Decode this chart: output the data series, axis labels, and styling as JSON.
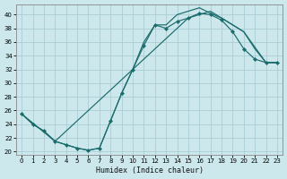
{
  "xlabel": "Humidex (Indice chaleur)",
  "bg_color": "#cce8ec",
  "grid_color": "#aacdd4",
  "line_color": "#1a6b6b",
  "xlim": [
    -0.5,
    23.5
  ],
  "ylim": [
    19.5,
    41.5
  ],
  "xticks": [
    0,
    1,
    2,
    3,
    4,
    5,
    6,
    7,
    8,
    9,
    10,
    11,
    12,
    13,
    14,
    15,
    16,
    17,
    18,
    19,
    20,
    21,
    22,
    23
  ],
  "yticks": [
    20,
    22,
    24,
    26,
    28,
    30,
    32,
    34,
    36,
    38,
    40
  ],
  "curve1_x": [
    0,
    1,
    2,
    3,
    4,
    5,
    6,
    7,
    8,
    9,
    10,
    11,
    12,
    13,
    14,
    15,
    16,
    17,
    18,
    19,
    20,
    21,
    22,
    23
  ],
  "curve1_y": [
    25.5,
    24.0,
    23.0,
    21.5,
    21.0,
    20.5,
    20.2,
    20.5,
    24.5,
    28.5,
    32.0,
    35.5,
    38.5,
    38.0,
    39.0,
    39.5,
    40.2,
    40.0,
    39.2,
    37.5,
    35.0,
    33.5,
    33.0,
    33.0
  ],
  "curve2_x": [
    0,
    1,
    2,
    3,
    4,
    5,
    6,
    7,
    8,
    9,
    10,
    11,
    12,
    13,
    14,
    15,
    16,
    17,
    18,
    19,
    20,
    21,
    22,
    23
  ],
  "curve2_y": [
    25.5,
    24.0,
    23.0,
    21.5,
    21.0,
    20.5,
    20.2,
    20.5,
    24.5,
    28.5,
    32.0,
    36.0,
    38.5,
    38.5,
    40.0,
    40.5,
    41.0,
    40.2,
    39.5,
    38.5,
    37.5,
    35.0,
    33.0,
    33.0
  ],
  "curve3_x": [
    0,
    3,
    10,
    15,
    17,
    19,
    20,
    22,
    23
  ],
  "curve3_y": [
    25.5,
    21.5,
    32.0,
    39.5,
    40.5,
    38.5,
    37.5,
    33.0,
    33.0
  ]
}
